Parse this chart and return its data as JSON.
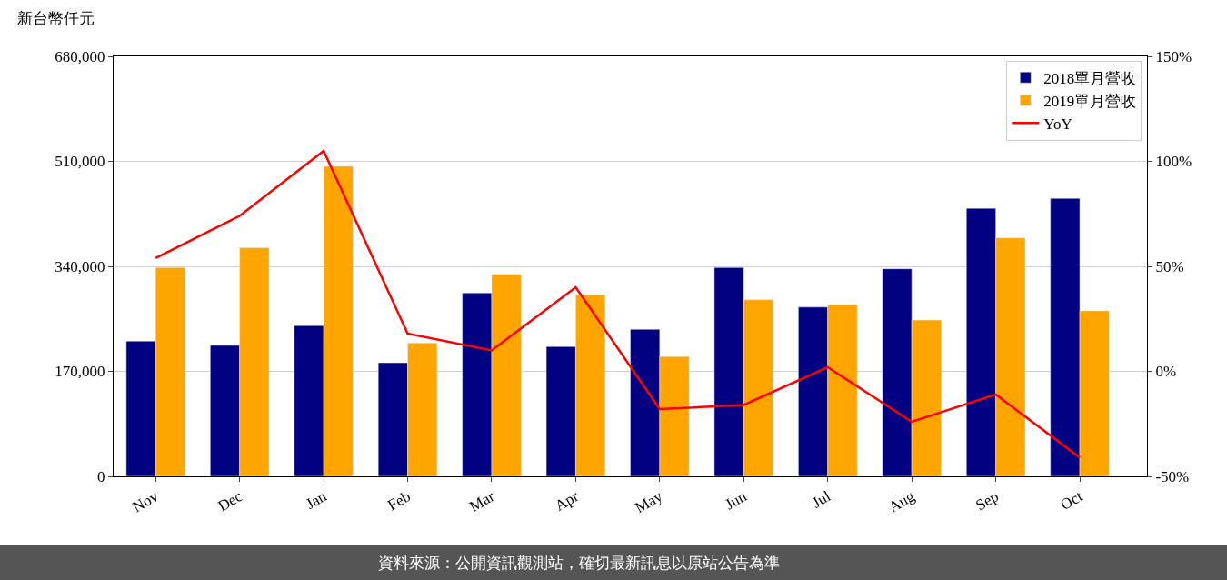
{
  "chart_data": {
    "type": "bar",
    "ylabel": "新台幣仟元",
    "categories": [
      "Nov",
      "Dec",
      "Jan",
      "Feb",
      "Mar",
      "Apr",
      "May",
      "Jun",
      "Jul",
      "Aug",
      "Sep",
      "Oct"
    ],
    "series": [
      {
        "name": "2018單月營收",
        "color": "#000080",
        "values": [
          219000,
          212000,
          244000,
          184000,
          297000,
          210000,
          238000,
          338000,
          274000,
          336000,
          434000,
          450000
        ]
      },
      {
        "name": "2019單月營收",
        "color": "#ffa500",
        "values": [
          338000,
          370000,
          502000,
          216000,
          327000,
          294000,
          194000,
          286000,
          278000,
          253000,
          386000,
          268000
        ]
      },
      {
        "name": "YoY",
        "type": "line",
        "axis": "y2",
        "color": "#ff0000",
        "values": [
          54,
          74,
          105,
          18,
          10,
          40,
          -18,
          -16,
          2,
          -24,
          -11,
          -41
        ]
      }
    ],
    "ylim": [
      0,
      680000
    ],
    "yticks": [
      {
        "value": 0,
        "label": "0"
      },
      {
        "value": 170000,
        "label": "170,000"
      },
      {
        "value": 340000,
        "label": "340,000"
      },
      {
        "value": 510000,
        "label": "510,000"
      },
      {
        "value": 680000,
        "label": "680,000"
      }
    ],
    "y2lim": [
      -50,
      150
    ],
    "y2ticks": [
      {
        "value": -50,
        "label": "-50%"
      },
      {
        "value": 0,
        "label": "0%"
      },
      {
        "value": 50,
        "label": "50%"
      },
      {
        "value": 100,
        "label": "100%"
      },
      {
        "value": 150,
        "label": "150%"
      }
    ],
    "grid": "y",
    "legend": "top right",
    "annotations": [
      "資料來源：公開資訊觀測站，確切最新訊息以原站公告為準"
    ]
  }
}
